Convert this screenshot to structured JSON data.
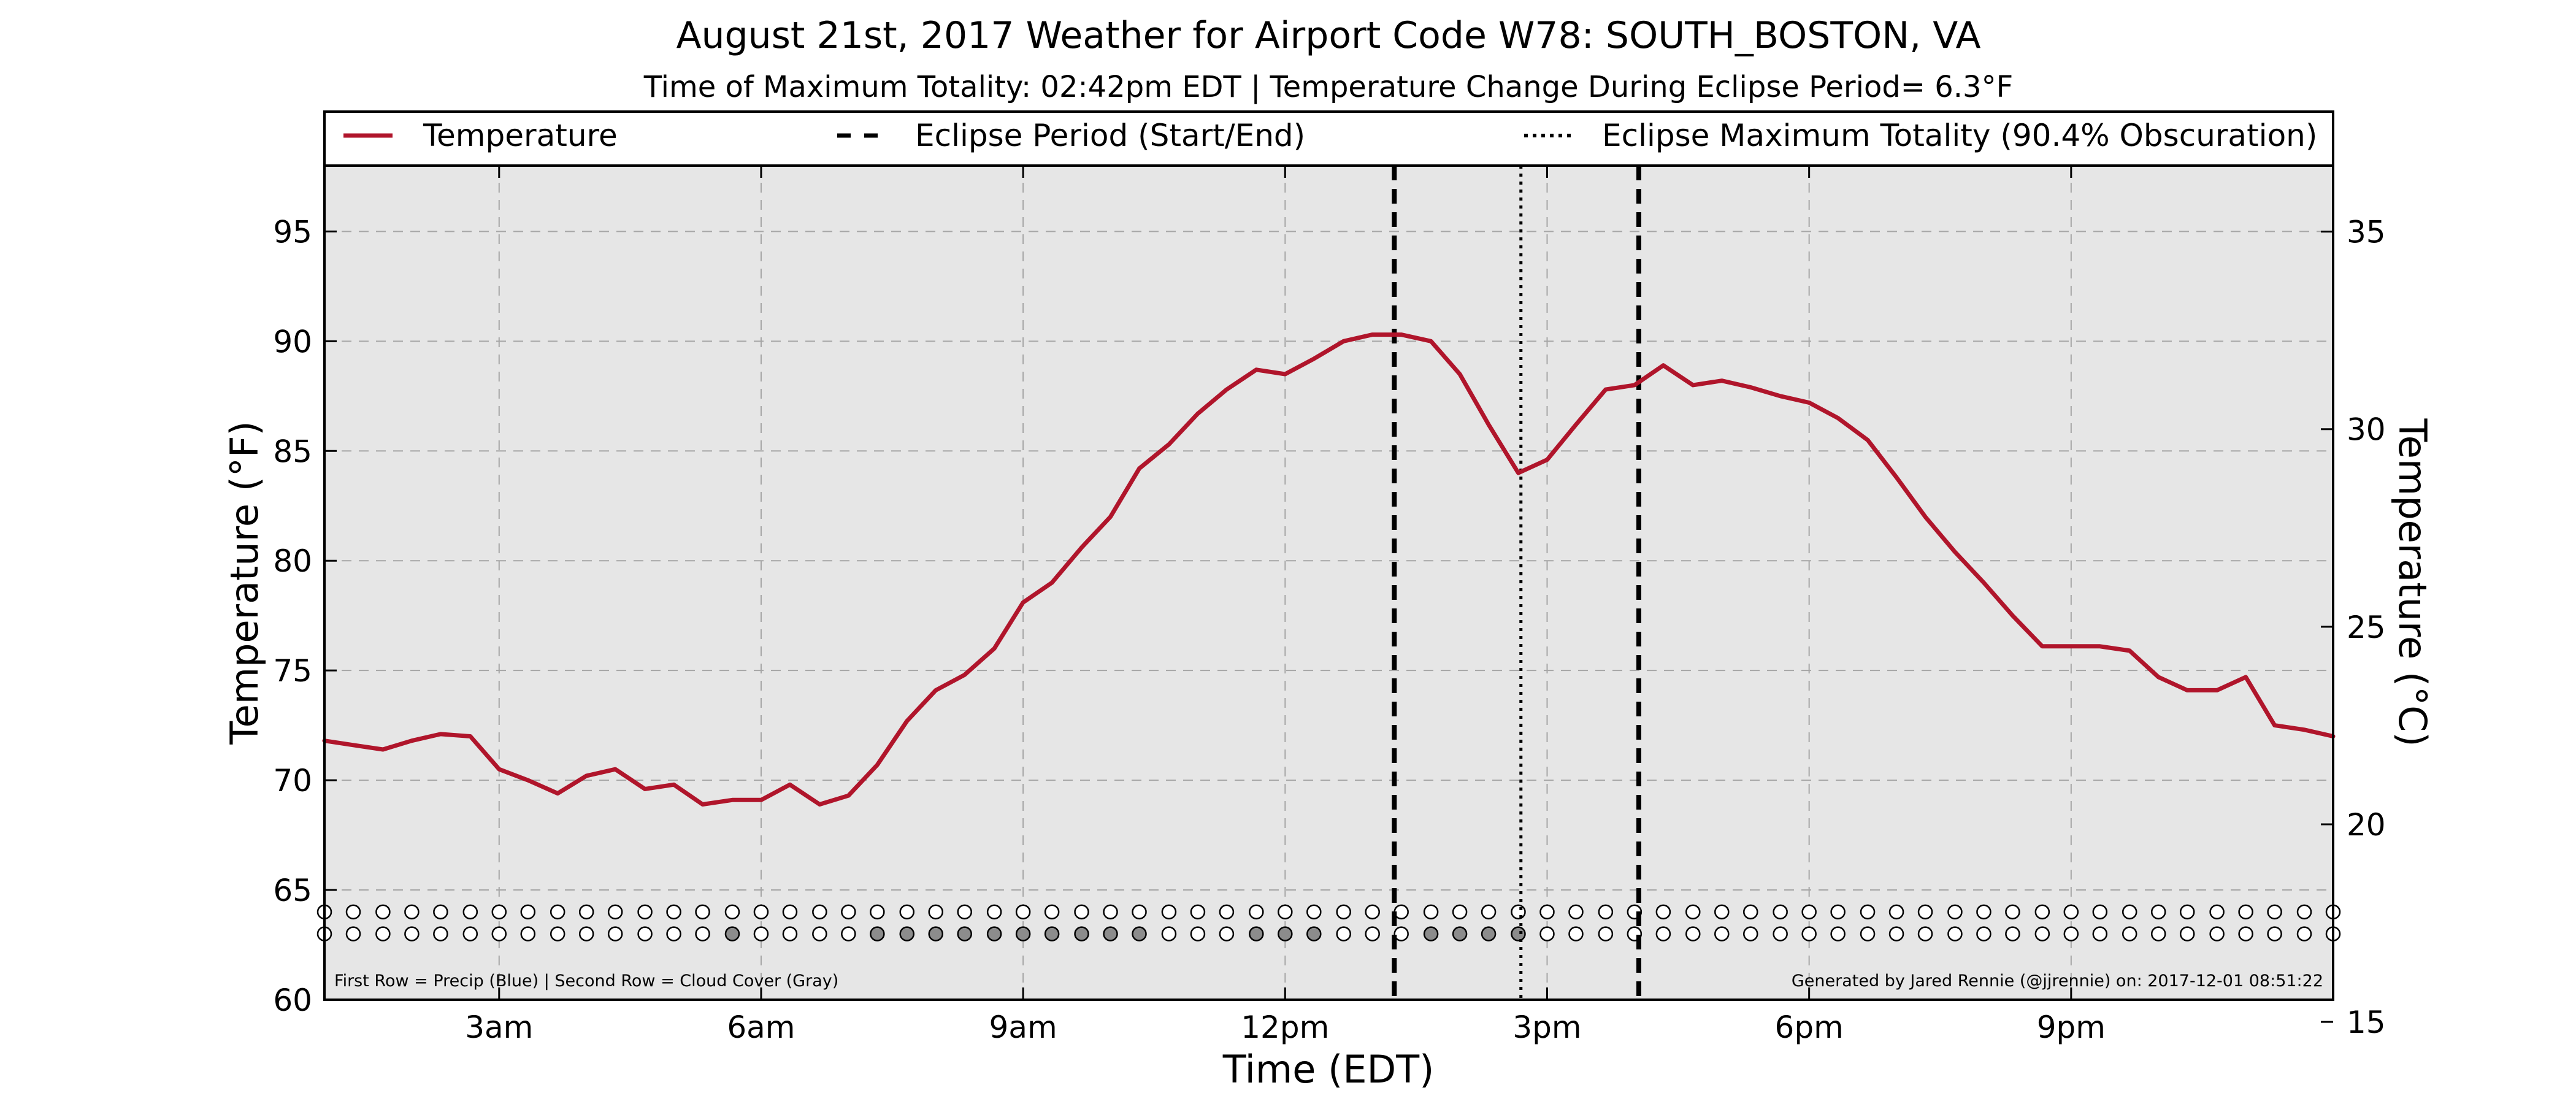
{
  "chart_data": {
    "type": "line",
    "title": "August 21st, 2017 Weather for Airport Code W78: SOUTH_BOSTON, VA",
    "subtitle": "Time of Maximum Totality: 02:42pm EDT | Temperature Change During Eclipse Period= 6.3°F",
    "xlabel": "Time (EDT)",
    "ylabel": "Temperature (°F)",
    "ylabel_right": "Temperature (°C)",
    "x_unit": "hours since midnight EDT",
    "xlim": [
      1,
      24
    ],
    "ylim": [
      60,
      98
    ],
    "ylim_right": [
      15.56,
      36.67
    ],
    "x_ticks": [
      {
        "value": 3,
        "label": "3am"
      },
      {
        "value": 6,
        "label": "6am"
      },
      {
        "value": 9,
        "label": "9am"
      },
      {
        "value": 12,
        "label": "12pm"
      },
      {
        "value": 15,
        "label": "3pm"
      },
      {
        "value": 18,
        "label": "6pm"
      },
      {
        "value": 21,
        "label": "9pm"
      }
    ],
    "y_ticks": [
      60,
      65,
      70,
      75,
      80,
      85,
      90,
      95
    ],
    "y_ticks_right": [
      15,
      20,
      25,
      30,
      35
    ],
    "grid": true,
    "legend_position": "top",
    "legend": [
      {
        "label": "Temperature",
        "style": "solid"
      },
      {
        "label": "Eclipse Period (Start/End)",
        "style": "dashed"
      },
      {
        "label": "Eclipse Maximum Totality (90.4% Obscuration)",
        "style": "dotted"
      }
    ],
    "eclipse_start": 13.25,
    "eclipse_end": 16.05,
    "eclipse_max": 14.7,
    "series": [
      {
        "name": "Temperature",
        "color": "#b0152b",
        "x": [
          1.0,
          1.33,
          1.67,
          2.0,
          2.33,
          2.67,
          3.0,
          3.33,
          3.67,
          4.0,
          4.33,
          4.67,
          5.0,
          5.33,
          5.67,
          6.0,
          6.33,
          6.67,
          7.0,
          7.33,
          7.67,
          8.0,
          8.33,
          8.67,
          9.0,
          9.33,
          9.67,
          10.0,
          10.33,
          10.67,
          11.0,
          11.33,
          11.67,
          12.0,
          12.33,
          12.67,
          13.0,
          13.33,
          13.67,
          14.0,
          14.33,
          14.67,
          15.0,
          15.33,
          15.67,
          16.0,
          16.33,
          16.67,
          17.0,
          17.33,
          17.67,
          18.0,
          18.33,
          18.67,
          19.0,
          19.33,
          19.67,
          20.0,
          20.33,
          20.67,
          21.0,
          21.33,
          21.67,
          22.0,
          22.33,
          22.67,
          23.0,
          23.33,
          23.67,
          24.0
        ],
        "values": [
          71.8,
          71.6,
          71.4,
          71.8,
          72.1,
          72.0,
          70.5,
          70.0,
          69.4,
          70.2,
          70.5,
          69.6,
          69.8,
          68.9,
          69.1,
          69.1,
          69.8,
          68.9,
          69.3,
          70.7,
          72.7,
          74.1,
          74.8,
          76.0,
          78.1,
          79.0,
          80.6,
          82.0,
          84.2,
          85.3,
          86.7,
          87.8,
          88.7,
          88.5,
          89.2,
          90.0,
          90.3,
          90.3,
          90.0,
          88.5,
          86.2,
          84.0,
          84.6,
          86.2,
          87.8,
          88.0,
          88.9,
          88.0,
          88.2,
          87.9,
          87.5,
          87.2,
          86.5,
          85.5,
          83.8,
          82.0,
          80.4,
          79.0,
          77.5,
          76.1,
          76.1,
          76.1,
          75.9,
          74.7,
          74.1,
          74.1,
          74.7,
          72.5,
          72.3,
          72.0
        ]
      }
    ],
    "marker_rows": {
      "caption": "First Row = Precip (Blue) | Second Row = Cloud Cover (Gray)",
      "precip_y": 64.0,
      "cloud_y": 63.0,
      "x": [
        1.0,
        1.33,
        1.67,
        2.0,
        2.33,
        2.67,
        3.0,
        3.33,
        3.67,
        4.0,
        4.33,
        4.67,
        5.0,
        5.33,
        5.67,
        6.0,
        6.33,
        6.67,
        7.0,
        7.33,
        7.67,
        8.0,
        8.33,
        8.67,
        9.0,
        9.33,
        9.67,
        10.0,
        10.33,
        10.67,
        11.0,
        11.33,
        11.67,
        12.0,
        12.33,
        12.67,
        13.0,
        13.33,
        13.67,
        14.0,
        14.33,
        14.67,
        15.0,
        15.33,
        15.67,
        16.0,
        16.33,
        16.67,
        17.0,
        17.33,
        17.67,
        18.0,
        18.33,
        18.67,
        19.0,
        19.33,
        19.67,
        20.0,
        20.33,
        20.67,
        21.0,
        21.33,
        21.67,
        22.0,
        22.33,
        22.67,
        23.0,
        23.33,
        23.67,
        24.0
      ],
      "precip": [
        0,
        0,
        0,
        0,
        0,
        0,
        0,
        0,
        0,
        0,
        0,
        0,
        0,
        0,
        0,
        0,
        0,
        0,
        0,
        0,
        0,
        0,
        0,
        0,
        0,
        0,
        0,
        0,
        0,
        0,
        0,
        0,
        0,
        0,
        0,
        0,
        0,
        0,
        0,
        0,
        0,
        0,
        0,
        0,
        0,
        0,
        0,
        0,
        0,
        0,
        0,
        0,
        0,
        0,
        0,
        0,
        0,
        0,
        0,
        0,
        0,
        0,
        0,
        0,
        0,
        0,
        0,
        0,
        0,
        0
      ],
      "cloud": [
        0,
        0,
        0,
        0,
        0,
        0,
        0,
        0,
        0,
        0,
        0,
        0,
        0,
        0,
        1,
        0,
        0,
        0,
        0,
        1,
        1,
        1,
        1,
        1,
        1,
        1,
        1,
        1,
        1,
        0,
        0,
        0,
        1,
        1,
        1,
        0,
        0,
        0,
        1,
        1,
        1,
        1,
        0,
        0,
        0,
        0,
        0,
        0,
        0,
        0,
        0,
        0,
        0,
        0,
        0,
        0,
        0,
        0,
        0,
        0,
        0,
        0,
        0,
        0,
        0,
        0,
        0,
        0,
        0,
        0
      ]
    },
    "credit": "Generated by Jared Rennie (@jjrennie) on: 2017-12-01 08:51:22"
  },
  "colors": {
    "plot_background": "#e6e6e6",
    "temperature_line": "#b0152b",
    "cloud_fill": "#8c8c8c",
    "precip_fill": "#1f5fbf",
    "grid": "#a6a6a6"
  }
}
